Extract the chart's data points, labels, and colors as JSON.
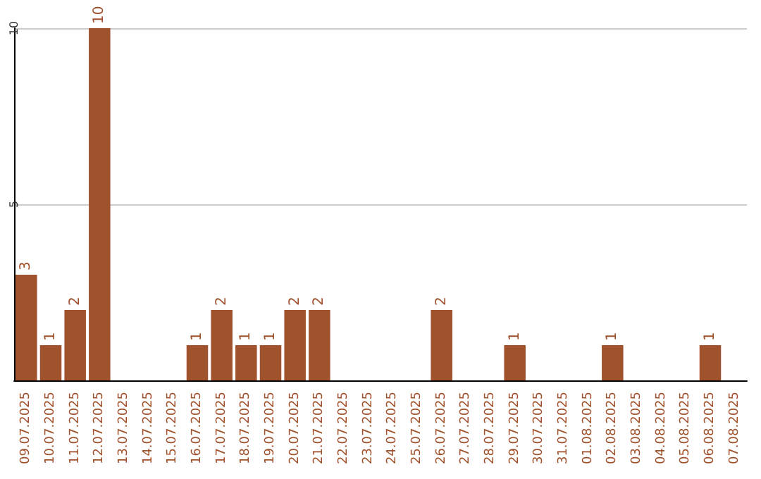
{
  "chart_data": {
    "type": "bar",
    "categories": [
      "09.07.2025",
      "10.07.2025",
      "11.07.2025",
      "12.07.2025",
      "13.07.2025",
      "14.07.2025",
      "15.07.2025",
      "16.07.2025",
      "17.07.2025",
      "18.07.2025",
      "19.07.2025",
      "20.07.2025",
      "21.07.2025",
      "22.07.2025",
      "23.07.2025",
      "24.07.2025",
      "25.07.2025",
      "26.07.2025",
      "27.07.2025",
      "28.07.2025",
      "29.07.2025",
      "30.07.2025",
      "31.07.2025",
      "01.08.2025",
      "02.08.2025",
      "03.08.2025",
      "04.08.2025",
      "05.08.2025",
      "06.08.2025",
      "07.08.2025"
    ],
    "values": [
      3,
      1,
      2,
      10,
      0,
      0,
      0,
      1,
      2,
      1,
      1,
      2,
      2,
      0,
      0,
      0,
      0,
      2,
      0,
      0,
      1,
      0,
      0,
      0,
      1,
      0,
      0,
      0,
      1,
      0
    ],
    "value_labels": [
      "3",
      "1",
      "2",
      "10",
      null,
      null,
      null,
      "1",
      "2",
      "1",
      "1",
      "2",
      "2",
      null,
      null,
      null,
      null,
      "2",
      null,
      null,
      "1",
      null,
      null,
      null,
      "1",
      null,
      null,
      null,
      "1",
      null
    ],
    "color": "#a0522d",
    "ylim": [
      0,
      10
    ],
    "yticks": [
      5,
      10
    ],
    "grid": "y"
  }
}
